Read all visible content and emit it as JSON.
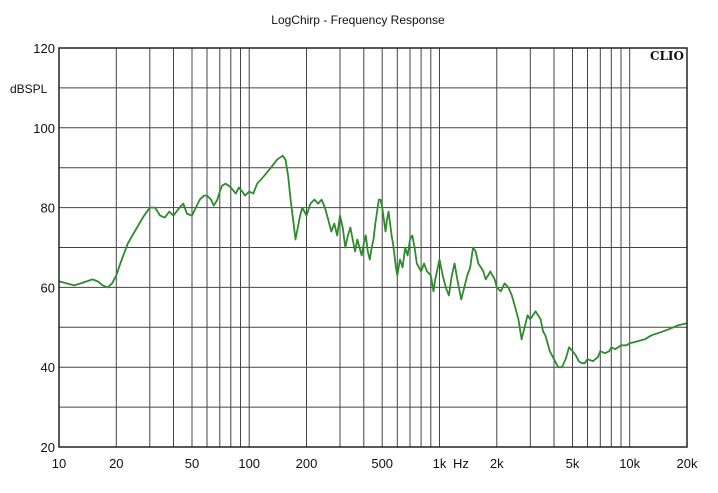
{
  "chart_data": {
    "type": "line",
    "title": "LogChirp - Frequency Response",
    "ylabel": "dBSPL",
    "xunit": "Hz",
    "brand": "CLIO",
    "xscale": "log",
    "xlim": [
      10,
      20000
    ],
    "ylim": [
      20,
      120
    ],
    "grid": true,
    "line_color": "#2e8b2e",
    "xticks": [
      {
        "value": 10,
        "label": "10"
      },
      {
        "value": 20,
        "label": "20"
      },
      {
        "value": 50,
        "label": "50"
      },
      {
        "value": 100,
        "label": "100"
      },
      {
        "value": 200,
        "label": "200"
      },
      {
        "value": 500,
        "label": "500"
      },
      {
        "value": 1000,
        "label": "1k"
      },
      {
        "value": 2000,
        "label": "2k"
      },
      {
        "value": 5000,
        "label": "5k"
      },
      {
        "value": 10000,
        "label": "10k"
      },
      {
        "value": 20000,
        "label": "20k"
      }
    ],
    "yticks": [
      {
        "value": 20,
        "label": "20"
      },
      {
        "value": 40,
        "label": "40"
      },
      {
        "value": 60,
        "label": "60"
      },
      {
        "value": 80,
        "label": "80"
      },
      {
        "value": 100,
        "label": "100"
      },
      {
        "value": 120,
        "label": "120"
      }
    ],
    "series": [
      {
        "points": [
          [
            10,
            61.5
          ],
          [
            11,
            61
          ],
          [
            12,
            60.5
          ],
          [
            13,
            61
          ],
          [
            15,
            62
          ],
          [
            16,
            61.5
          ],
          [
            17,
            60.5
          ],
          [
            18,
            60
          ],
          [
            19,
            61
          ],
          [
            20,
            63
          ],
          [
            21,
            66
          ],
          [
            23,
            71
          ],
          [
            25,
            74
          ],
          [
            28,
            78
          ],
          [
            30,
            80
          ],
          [
            32,
            80
          ],
          [
            34,
            78
          ],
          [
            36,
            77.5
          ],
          [
            38,
            79
          ],
          [
            40,
            78
          ],
          [
            43,
            80
          ],
          [
            45,
            81
          ],
          [
            47,
            78.5
          ],
          [
            50,
            78
          ],
          [
            53,
            80.5
          ],
          [
            55,
            82
          ],
          [
            58,
            83
          ],
          [
            60,
            83
          ],
          [
            63,
            82
          ],
          [
            65,
            80.5
          ],
          [
            68,
            82
          ],
          [
            70,
            84
          ],
          [
            72,
            85.5
          ],
          [
            75,
            86
          ],
          [
            78,
            85.5
          ],
          [
            80,
            85
          ],
          [
            85,
            83.5
          ],
          [
            88,
            85
          ],
          [
            92,
            84
          ],
          [
            95,
            83
          ],
          [
            100,
            84
          ],
          [
            105,
            83.5
          ],
          [
            110,
            86
          ],
          [
            115,
            87
          ],
          [
            120,
            88
          ],
          [
            130,
            90
          ],
          [
            140,
            92
          ],
          [
            150,
            93
          ],
          [
            155,
            92
          ],
          [
            160,
            88
          ],
          [
            165,
            82
          ],
          [
            170,
            77
          ],
          [
            175,
            72
          ],
          [
            180,
            75
          ],
          [
            185,
            78
          ],
          [
            190,
            80
          ],
          [
            200,
            78
          ],
          [
            210,
            81
          ],
          [
            220,
            82
          ],
          [
            230,
            81
          ],
          [
            240,
            82
          ],
          [
            250,
            80
          ],
          [
            260,
            77
          ],
          [
            270,
            74
          ],
          [
            280,
            76
          ],
          [
            290,
            73
          ],
          [
            300,
            78
          ],
          [
            310,
            75
          ],
          [
            320,
            70
          ],
          [
            330,
            73
          ],
          [
            340,
            75
          ],
          [
            350,
            72
          ],
          [
            360,
            69
          ],
          [
            370,
            72
          ],
          [
            380,
            70
          ],
          [
            390,
            68
          ],
          [
            400,
            71
          ],
          [
            410,
            73
          ],
          [
            420,
            69
          ],
          [
            430,
            67
          ],
          [
            440,
            70
          ],
          [
            450,
            72
          ],
          [
            460,
            76
          ],
          [
            470,
            79
          ],
          [
            480,
            82
          ],
          [
            490,
            82
          ],
          [
            500,
            80
          ],
          [
            510,
            77
          ],
          [
            520,
            74
          ],
          [
            530,
            77
          ],
          [
            540,
            79
          ],
          [
            550,
            76
          ],
          [
            560,
            73
          ],
          [
            570,
            71
          ],
          [
            580,
            68
          ],
          [
            590,
            65
          ],
          [
            600,
            63
          ],
          [
            620,
            67
          ],
          [
            640,
            65
          ],
          [
            660,
            70
          ],
          [
            680,
            68
          ],
          [
            700,
            72
          ],
          [
            720,
            73
          ],
          [
            740,
            70
          ],
          [
            760,
            66
          ],
          [
            780,
            65
          ],
          [
            800,
            64
          ],
          [
            830,
            66
          ],
          [
            860,
            64
          ],
          [
            900,
            63
          ],
          [
            930,
            59
          ],
          [
            950,
            62
          ],
          [
            980,
            65
          ],
          [
            1000,
            67
          ],
          [
            1040,
            63
          ],
          [
            1080,
            60
          ],
          [
            1120,
            58
          ],
          [
            1160,
            63
          ],
          [
            1200,
            66
          ],
          [
            1240,
            62
          ],
          [
            1300,
            57
          ],
          [
            1350,
            60
          ],
          [
            1400,
            63
          ],
          [
            1450,
            65
          ],
          [
            1500,
            70
          ],
          [
            1550,
            69
          ],
          [
            1600,
            66
          ],
          [
            1650,
            65
          ],
          [
            1700,
            64
          ],
          [
            1750,
            62
          ],
          [
            1800,
            63
          ],
          [
            1850,
            64
          ],
          [
            1900,
            63
          ],
          [
            1950,
            62
          ],
          [
            2000,
            60
          ],
          [
            2100,
            59
          ],
          [
            2200,
            61
          ],
          [
            2300,
            60
          ],
          [
            2400,
            58
          ],
          [
            2500,
            55
          ],
          [
            2600,
            52
          ],
          [
            2700,
            47
          ],
          [
            2800,
            50
          ],
          [
            2900,
            53
          ],
          [
            3000,
            52
          ],
          [
            3200,
            54
          ],
          [
            3400,
            52
          ],
          [
            3500,
            49
          ],
          [
            3600,
            48
          ],
          [
            3700,
            46
          ],
          [
            3800,
            44
          ],
          [
            4000,
            42
          ],
          [
            4200,
            40
          ],
          [
            4400,
            40
          ],
          [
            4600,
            42
          ],
          [
            4800,
            45
          ],
          [
            5000,
            44
          ],
          [
            5200,
            43
          ],
          [
            5400,
            41.5
          ],
          [
            5600,
            41
          ],
          [
            5800,
            41
          ],
          [
            6000,
            42
          ],
          [
            6400,
            41.5
          ],
          [
            6800,
            42.5
          ],
          [
            7000,
            44
          ],
          [
            7400,
            43.5
          ],
          [
            7800,
            44
          ],
          [
            8000,
            45
          ],
          [
            8400,
            44.5
          ],
          [
            9000,
            45.5
          ],
          [
            9600,
            45.5
          ],
          [
            10000,
            46
          ],
          [
            11000,
            46.5
          ],
          [
            12000,
            47
          ],
          [
            13000,
            48
          ],
          [
            14000,
            48.5
          ],
          [
            15000,
            49
          ],
          [
            16000,
            49.5
          ],
          [
            18000,
            50.5
          ],
          [
            20000,
            51
          ]
        ]
      }
    ]
  }
}
